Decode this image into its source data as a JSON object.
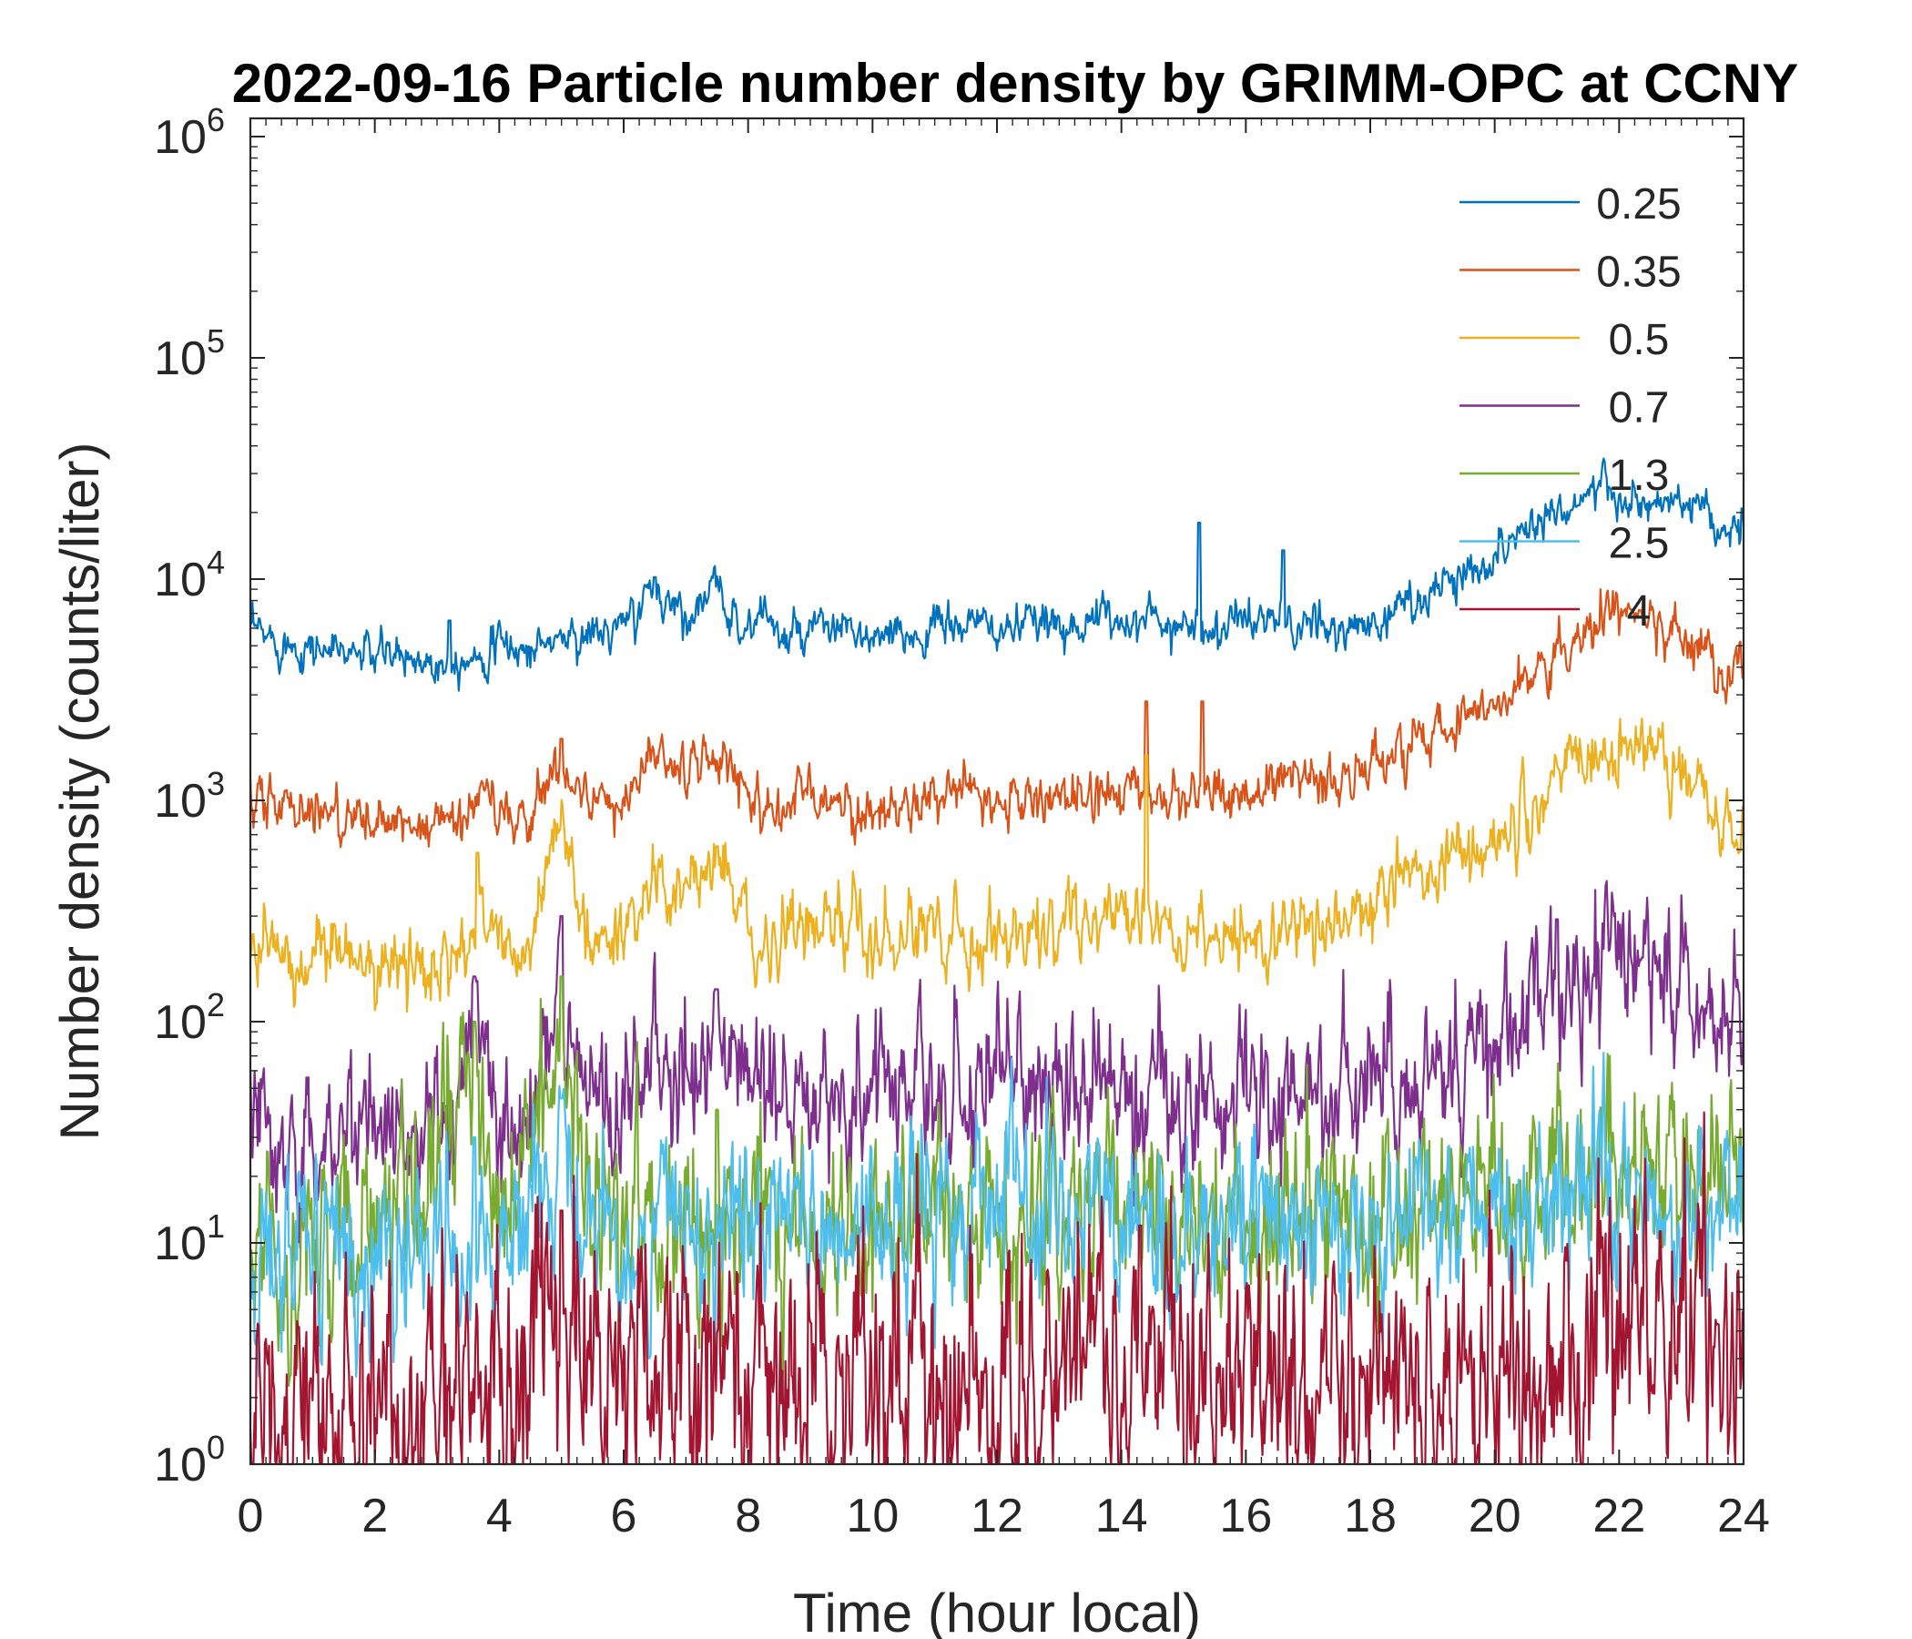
{
  "chart_data": {
    "type": "line",
    "title": "2022-09-16 Particle number density by GRIMM-OPC at CCNY",
    "xlabel": "Time (hour local)",
    "ylabel": "Number density (counts/liter)",
    "xlim": [
      0,
      24
    ],
    "ylim": [
      1,
      1000000
    ],
    "yscale": "log",
    "x_ticks": [
      0,
      2,
      4,
      6,
      8,
      10,
      12,
      14,
      16,
      18,
      20,
      22,
      24
    ],
    "x_tick_labels": [
      "0",
      "2",
      "4",
      "6",
      "8",
      "10",
      "12",
      "14",
      "16",
      "18",
      "20",
      "22",
      "24"
    ],
    "y_ticks": [
      {
        "value": 1,
        "base": "10",
        "exp": "0"
      },
      {
        "value": 10,
        "base": "10",
        "exp": "1"
      },
      {
        "value": 100,
        "base": "10",
        "exp": "2"
      },
      {
        "value": 1000,
        "base": "10",
        "exp": "3"
      },
      {
        "value": 10000,
        "base": "10",
        "exp": "4"
      },
      {
        "value": 100000,
        "base": "10",
        "exp": "5"
      },
      {
        "value": 1000000,
        "base": "10",
        "exp": "6"
      }
    ],
    "legend_position": "top-right",
    "series": [
      {
        "name": "0.25",
        "color": "#0072BD",
        "noise": 0.09,
        "x": [
          0,
          0.5,
          1,
          1.5,
          2,
          2.5,
          3,
          3.5,
          4,
          4.5,
          5,
          5.5,
          6,
          6.5,
          7,
          7.5,
          8,
          8.3,
          8.5,
          9,
          9.5,
          10,
          10.5,
          11,
          11.5,
          12,
          12.5,
          13,
          13.5,
          14,
          14.5,
          15,
          15.2,
          15.5,
          16,
          16.5,
          17,
          17.5,
          18,
          18.5,
          19,
          19.5,
          20,
          20.5,
          21,
          21.5,
          21.7,
          22,
          22.5,
          23,
          23.3,
          23.6,
          24
        ],
        "values": [
          5800,
          5200,
          4900,
          4700,
          4600,
          4400,
          4200,
          4500,
          5000,
          4800,
          5500,
          5600,
          6000,
          9000,
          7000,
          8800,
          5800,
          7500,
          5200,
          5600,
          6000,
          5200,
          5400,
          6000,
          6300,
          5900,
          6100,
          6300,
          6400,
          6700,
          6600,
          6200,
          6600,
          5600,
          6800,
          6500,
          6000,
          5800,
          6200,
          7500,
          9000,
          10500,
          13000,
          17000,
          21000,
          24000,
          27000,
          22000,
          21000,
          22000,
          20000,
          16000,
          17000
        ],
        "spikes": [
          [
            15.25,
            18000
          ],
          [
            16.6,
            13500
          ],
          [
            6.5,
            10200
          ],
          [
            7.4,
            9800
          ],
          [
            3.2,
            6500
          ],
          [
            14.9,
            4200
          ]
        ]
      },
      {
        "name": "0.35",
        "color": "#D95319",
        "noise": 0.11,
        "x": [
          0,
          0.5,
          1,
          1.5,
          2,
          2.5,
          3,
          3.5,
          3.7,
          4,
          4.5,
          5,
          5.5,
          6,
          6.5,
          7,
          7.5,
          8,
          8.5,
          9,
          9.5,
          10,
          10.5,
          11,
          11.5,
          12,
          12.5,
          13,
          13.5,
          14,
          14.5,
          15,
          15.5,
          16,
          16.5,
          17,
          17.5,
          18,
          18.5,
          19,
          19.5,
          20,
          20.5,
          21,
          21.5,
          22,
          22.5,
          23,
          23.3,
          23.6,
          24
        ],
        "values": [
          1050,
          900,
          950,
          850,
          800,
          720,
          780,
          850,
          1200,
          850,
          800,
          1600,
          900,
          1000,
          1700,
          1300,
          1600,
          1100,
          900,
          1100,
          1000,
          850,
          950,
          1100,
          1000,
          1000,
          1000,
          1050,
          1100,
          1050,
          1100,
          1000,
          1100,
          1050,
          1200,
          1300,
          1250,
          1400,
          1600,
          2000,
          2500,
          3000,
          3600,
          4500,
          6000,
          7000,
          6500,
          5500,
          5000,
          3600,
          4000
        ],
        "spikes": [
          [
            14.4,
            2800
          ],
          [
            15.3,
            2800
          ],
          [
            5.0,
            1900
          ],
          [
            16.7,
            1400
          ]
        ]
      },
      {
        "name": "0.5",
        "color": "#EDB120",
        "noise": 0.15,
        "x": [
          0,
          0.5,
          1,
          1.5,
          2,
          2.5,
          3,
          3.5,
          3.7,
          4,
          4.5,
          5,
          5.5,
          6,
          6.5,
          7,
          7.5,
          8,
          8.5,
          9,
          9.5,
          10,
          10.5,
          11,
          11.5,
          12,
          12.5,
          13,
          13.5,
          14,
          14.5,
          15,
          15.5,
          16,
          16.5,
          17,
          17.5,
          18,
          18.5,
          19,
          19.5,
          20,
          20.5,
          21,
          21.5,
          22,
          22.5,
          23,
          23.3,
          23.6,
          24
        ],
        "values": [
          230,
          200,
          200,
          190,
          180,
          170,
          170,
          190,
          400,
          220,
          210,
          800,
          220,
          250,
          480,
          350,
          500,
          270,
          230,
          280,
          260,
          220,
          250,
          270,
          250,
          240,
          250,
          260,
          270,
          280,
          300,
          230,
          220,
          230,
          250,
          300,
          280,
          350,
          420,
          500,
          600,
          650,
          850,
          1200,
          1500,
          1800,
          1600,
          1400,
          1300,
          650,
          900
        ],
        "spikes": [
          [
            14.4,
            1600
          ],
          [
            3.65,
            580
          ],
          [
            7.5,
            620
          ]
        ]
      },
      {
        "name": "0.7",
        "color": "#7E2F8E",
        "noise": 0.32,
        "x": [
          0,
          1,
          2,
          3,
          3.6,
          4,
          4.5,
          5,
          5.5,
          6,
          6.5,
          7,
          7.5,
          8,
          9,
          10,
          11,
          12,
          13,
          14,
          15,
          16,
          17,
          18,
          19,
          20,
          20.5,
          21,
          21.5,
          22,
          22.5,
          23,
          23.5,
          24
        ],
        "values": [
          35,
          33,
          32,
          33,
          70,
          40,
          38,
          150,
          40,
          45,
          75,
          55,
          80,
          50,
          52,
          50,
          52,
          52,
          50,
          50,
          45,
          45,
          48,
          52,
          65,
          85,
          100,
          120,
          160,
          190,
          170,
          150,
          120,
          100
        ],
        "spikes": [
          [
            3.6,
            160
          ],
          [
            5.0,
            300
          ],
          [
            7.5,
            140
          ],
          [
            21.0,
            290
          ]
        ]
      },
      {
        "name": "1.3",
        "color": "#77AC30",
        "noise": 0.4,
        "x": [
          0,
          2,
          3.6,
          4,
          5,
          5.5,
          6,
          8,
          10,
          12,
          14,
          16,
          18,
          20,
          21,
          22,
          23,
          24
        ],
        "values": [
          10,
          10,
          40,
          12,
          60,
          13,
          13,
          13,
          12,
          13,
          13,
          13,
          13,
          15,
          18,
          22,
          20,
          20
        ],
        "spikes": [
          [
            3.6,
            100
          ],
          [
            5.0,
            160
          ],
          [
            7.5,
            40
          ]
        ]
      },
      {
        "name": "2.5",
        "color": "#4DBEEE",
        "noise": 0.38,
        "x": [
          0,
          2,
          4,
          5,
          5.5,
          6,
          8,
          10,
          12,
          14,
          16,
          18,
          20,
          22,
          24
        ],
        "values": [
          7,
          8,
          9,
          25,
          10,
          11,
          12,
          12,
          13,
          12,
          11,
          11,
          13,
          16,
          14
        ],
        "spikes": [
          [
            5.0,
            45
          ],
          [
            3.6,
            30
          ]
        ]
      },
      {
        "name": "4",
        "color": "#A2142F",
        "noise": 0.6,
        "x": [
          0,
          2,
          4,
          5,
          5.5,
          6,
          8,
          10,
          12,
          14,
          16,
          18,
          20,
          21.5,
          22,
          23,
          24
        ],
        "values": [
          1.6,
          1.6,
          2.0,
          5,
          2.2,
          2.4,
          2.5,
          2.5,
          2.5,
          3,
          2.5,
          2.5,
          2.5,
          3,
          4.5,
          4,
          3
        ],
        "spikes": [
          [
            5.0,
            14
          ],
          [
            14.3,
            12
          ]
        ]
      }
    ]
  }
}
